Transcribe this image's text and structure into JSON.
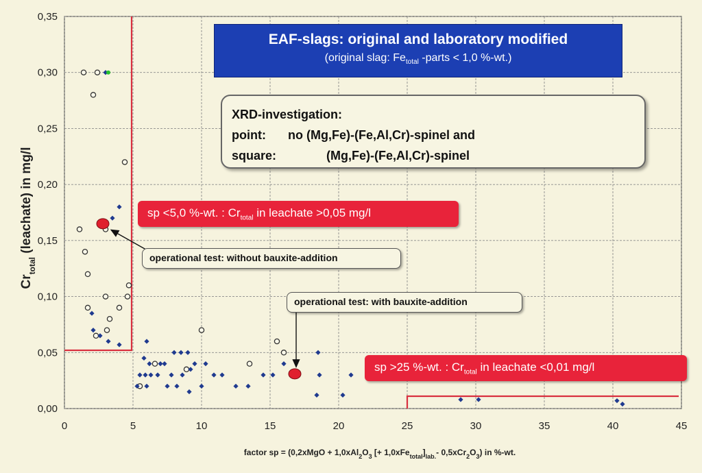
{
  "chart_data": {
    "type": "scatter",
    "xlabel_parts": [
      "factor sp = (0,2xMgO + 1,0xAl",
      "2",
      "O",
      "3",
      " [+ 1,0xFe",
      "total",
      "]",
      "lab.",
      "- 0,5xCr",
      "2",
      "O",
      "3",
      ") in %-wt."
    ],
    "ylabel_main": "Cr",
    "ylabel_sub": "total",
    "ylabel_rest": " (leachate) in mg/l",
    "xlim": [
      0,
      45
    ],
    "ylim": [
      0,
      0.35
    ],
    "x_ticks": [
      0,
      5,
      10,
      15,
      20,
      25,
      30,
      35,
      40,
      45
    ],
    "y_ticks": [
      "0,00",
      "0,05",
      "0,10",
      "0,15",
      "0,20",
      "0,25",
      "0,30",
      "0,35"
    ],
    "grid": true,
    "series": [
      {
        "marker": "open-circle",
        "points": [
          [
            1.4,
            0.3
          ],
          [
            2.4,
            0.3
          ],
          [
            2.1,
            0.28
          ],
          [
            4.4,
            0.22
          ],
          [
            1.1,
            0.16
          ],
          [
            3.0,
            0.16
          ],
          [
            1.5,
            0.14
          ],
          [
            1.7,
            0.12
          ],
          [
            4.7,
            0.11
          ],
          [
            3.0,
            0.1
          ],
          [
            4.6,
            0.1
          ],
          [
            1.7,
            0.09
          ],
          [
            4.0,
            0.09
          ],
          [
            3.3,
            0.08
          ],
          [
            3.1,
            0.07
          ],
          [
            2.3,
            0.065
          ],
          [
            10.0,
            0.07
          ],
          [
            15.5,
            0.06
          ],
          [
            16.0,
            0.05
          ],
          [
            6.6,
            0.04
          ],
          [
            13.5,
            0.04
          ],
          [
            8.9,
            0.035
          ],
          [
            5.5,
            0.02
          ]
        ]
      },
      {
        "marker": "filled-diamond",
        "points": [
          [
            3.0,
            0.3
          ],
          [
            4.0,
            0.18
          ],
          [
            3.5,
            0.17
          ],
          [
            2.0,
            0.085
          ],
          [
            2.1,
            0.07
          ],
          [
            2.6,
            0.065
          ],
          [
            3.2,
            0.06
          ],
          [
            4.0,
            0.057
          ],
          [
            6.0,
            0.06
          ],
          [
            5.8,
            0.045
          ],
          [
            6.2,
            0.04
          ],
          [
            7.0,
            0.04
          ],
          [
            7.3,
            0.04
          ],
          [
            8.0,
            0.05
          ],
          [
            8.5,
            0.05
          ],
          [
            9.0,
            0.05
          ],
          [
            5.5,
            0.03
          ],
          [
            5.9,
            0.03
          ],
          [
            6.3,
            0.03
          ],
          [
            6.8,
            0.03
          ],
          [
            7.8,
            0.03
          ],
          [
            8.6,
            0.03
          ],
          [
            9.5,
            0.04
          ],
          [
            10.3,
            0.04
          ],
          [
            10.9,
            0.03
          ],
          [
            11.5,
            0.03
          ],
          [
            9.2,
            0.035
          ],
          [
            5.3,
            0.02
          ],
          [
            6.0,
            0.02
          ],
          [
            7.5,
            0.02
          ],
          [
            8.2,
            0.02
          ],
          [
            10.0,
            0.02
          ],
          [
            12.5,
            0.02
          ],
          [
            13.4,
            0.02
          ],
          [
            14.5,
            0.03
          ],
          [
            15.2,
            0.03
          ],
          [
            16.0,
            0.04
          ],
          [
            18.5,
            0.05
          ],
          [
            18.6,
            0.03
          ],
          [
            18.4,
            0.012
          ],
          [
            20.3,
            0.012
          ],
          [
            20.9,
            0.03
          ],
          [
            9.1,
            0.015
          ],
          [
            28.9,
            0.008
          ],
          [
            30.2,
            0.008
          ],
          [
            40.3,
            0.007
          ],
          [
            40.7,
            0.004
          ]
        ]
      },
      {
        "marker": "red-operational-test",
        "points": [
          [
            2.8,
            0.165
          ],
          [
            16.8,
            0.031
          ]
        ]
      },
      {
        "marker": "green-point",
        "points": [
          [
            3.2,
            0.3
          ]
        ]
      }
    ],
    "boundaries": [
      {
        "segments": [
          [
            0,
            0.052
          ],
          [
            4.9,
            0.052
          ],
          [
            4.9,
            0.35
          ]
        ]
      },
      {
        "segments": [
          [
            25,
            0
          ],
          [
            25,
            0.011
          ],
          [
            44.8,
            0.011
          ]
        ]
      }
    ],
    "annotations": {
      "title_main": "EAF-slags: original and laboratory modified",
      "title_sub_pre": "(original slag: Fe",
      "title_sub_sub": "total",
      "title_sub_post": " -parts < 1,0 %-wt.)",
      "xrd_heading": "XRD-investigation:",
      "xrd_point_label": "point:",
      "xrd_point_text": "no (Mg,Fe)-(Fe,Al,Cr)-spinel and",
      "xrd_square_label": "square:",
      "xrd_square_text": "(Mg,Fe)-(Fe,Al,Cr)-spinel",
      "red1_pre": "sp <5,0 %-wt. : Cr",
      "red1_sub": "total",
      "red1_post": " in leachate >0,05 mg/l",
      "red2_pre": "sp >25 %-wt. : Cr",
      "red2_sub": "total",
      "red2_post": " in leachate <0,01 mg/l",
      "callout1": "operational test: without bauxite-addition",
      "callout2": "operational test: with bauxite-addition"
    },
    "colors": {
      "grid": "#8a8a8a",
      "boundary": "#d9303f",
      "diamond": "#1f3a8f",
      "open_circle": "#333333",
      "operational": "#e0202e",
      "green": "#27c22c",
      "title_bg": "#1c3fb3",
      "red_box": "#e8233a"
    }
  }
}
